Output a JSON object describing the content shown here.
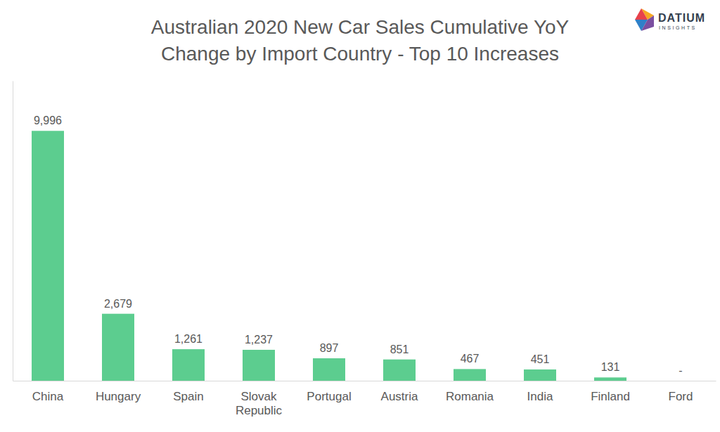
{
  "chart_data": {
    "type": "bar",
    "title": "Australian 2020 New Car Sales Cumulative YoY\nChange by Import Country - Top 10 Increases",
    "annotations": [
      "DATIUM",
      "INSIGHTS"
    ],
    "categories": [
      "China",
      "Hungary",
      "Spain",
      "Slovak Republic",
      "Portugal",
      "Austria",
      "Romania",
      "India",
      "Finland",
      "Ford"
    ],
    "values": [
      9996,
      2679,
      1261,
      1237,
      897,
      851,
      467,
      451,
      131,
      0
    ],
    "value_labels": [
      "9,996",
      "2,679",
      "1,261",
      "1,237",
      "897",
      "851",
      "467",
      "451",
      "131",
      "-"
    ],
    "color": "#5ccd8f",
    "ylim": [
      0,
      12000
    ],
    "yticks": [],
    "data_labels": true,
    "tick_labels": "x",
    "grid": false
  }
}
